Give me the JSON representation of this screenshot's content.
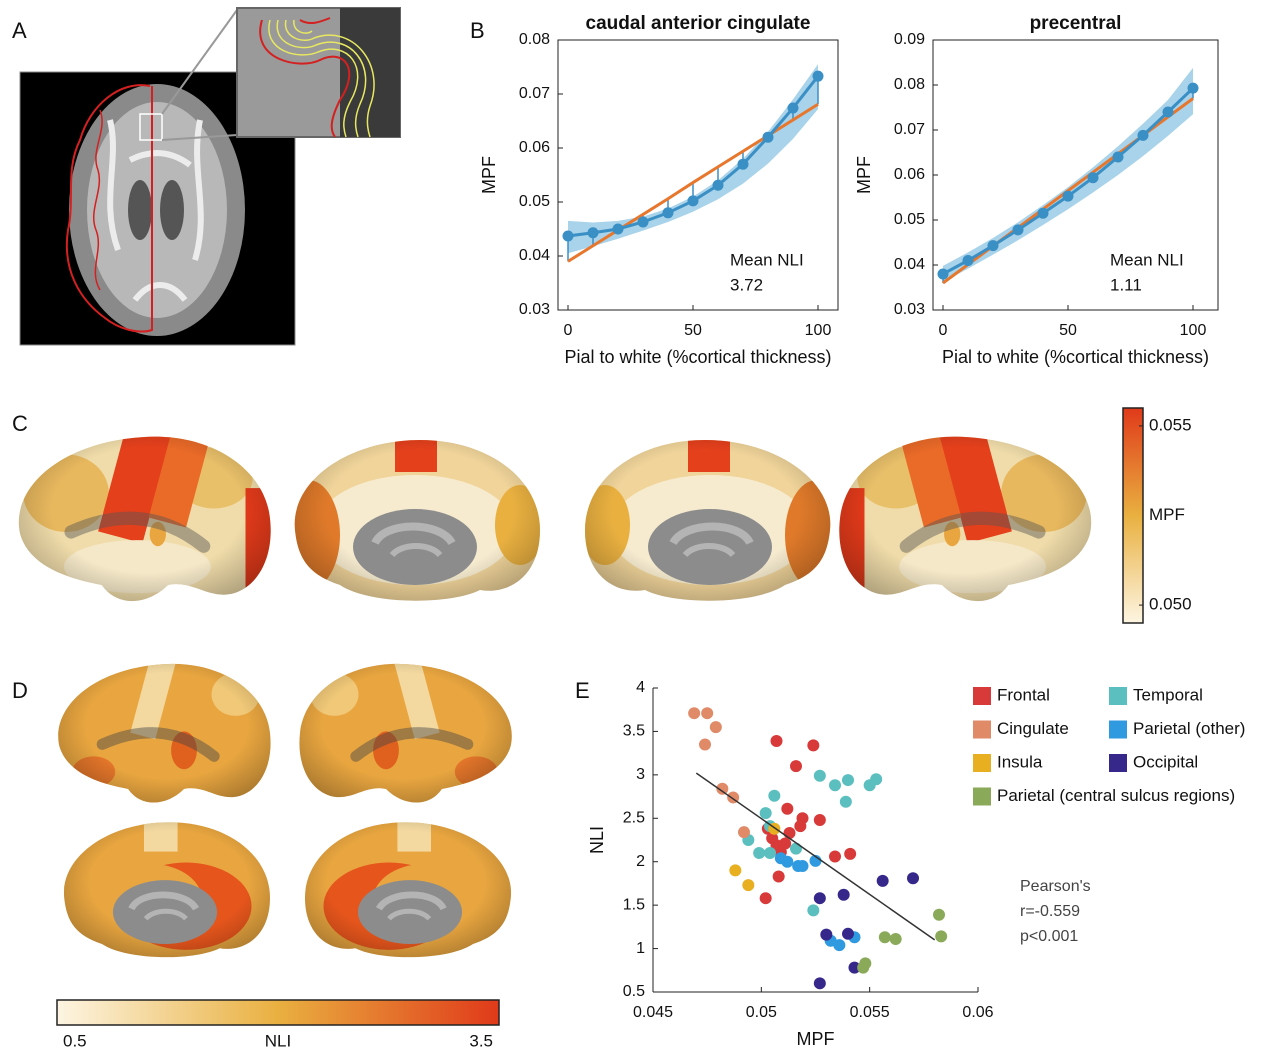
{
  "panel_labels": [
    "A",
    "B",
    "C",
    "D",
    "E"
  ],
  "chart_data": [
    {
      "type": "line",
      "title": "caudal anterior cingulate",
      "xlabel": "Pial to white (%cortical thickness)",
      "ylabel": "MPF",
      "x": [
        0,
        10,
        20,
        30,
        40,
        50,
        60,
        70,
        80,
        90,
        100
      ],
      "xlim": [
        -4,
        108
      ],
      "xticks": [
        0,
        50,
        100
      ],
      "ylim": [
        0.03,
        0.08
      ],
      "yticks": [
        0.03,
        0.04,
        0.05,
        0.06,
        0.07,
        0.08
      ],
      "band": {
        "color": "#a8d3ea",
        "lower": [
          0.0405,
          0.0418,
          0.0432,
          0.0447,
          0.0463,
          0.0482,
          0.0505,
          0.0534,
          0.0571,
          0.0617,
          0.0672
        ],
        "upper": [
          0.0465,
          0.0462,
          0.0465,
          0.0473,
          0.0488,
          0.051,
          0.054,
          0.058,
          0.063,
          0.069,
          0.0755
        ]
      },
      "series": [
        {
          "color": "#3a8fc4",
          "values": [
            0.0437,
            0.0443,
            0.045,
            0.0463,
            0.048,
            0.0502,
            0.0531,
            0.057,
            0.062,
            0.0674,
            0.0733
          ]
        },
        {
          "color": "#e8772e",
          "values": [
            0.039,
            0.0419,
            0.0448,
            0.0477,
            0.0506,
            0.0536,
            0.0565,
            0.0594,
            0.0623,
            0.0652,
            0.0681
          ]
        }
      ],
      "annotation": [
        "Mean NLI",
        "3.72"
      ]
    },
    {
      "type": "line",
      "title": "precentral",
      "xlabel": "Pial to white (%cortical thickness)",
      "ylabel": "MPF",
      "x": [
        0,
        10,
        20,
        30,
        40,
        50,
        60,
        70,
        80,
        90,
        100
      ],
      "xlim": [
        -4,
        110
      ],
      "xticks": [
        0,
        50,
        100
      ],
      "ylim": [
        0.03,
        0.09
      ],
      "yticks": [
        0.03,
        0.04,
        0.05,
        0.06,
        0.07,
        0.08,
        0.09
      ],
      "band": {
        "color": "#a8d3ea",
        "lower": [
          0.0362,
          0.0392,
          0.0423,
          0.0455,
          0.0489,
          0.0524,
          0.0561,
          0.06,
          0.0642,
          0.0687,
          0.0735
        ],
        "upper": [
          0.0398,
          0.0428,
          0.046,
          0.0495,
          0.0533,
          0.0573,
          0.0617,
          0.0664,
          0.0714,
          0.0767,
          0.0838
        ]
      },
      "series": [
        {
          "color": "#3a8fc4",
          "values": [
            0.038,
            0.041,
            0.0443,
            0.0478,
            0.0515,
            0.0553,
            0.0594,
            0.064,
            0.0688,
            0.074,
            0.0793
          ]
        },
        {
          "color": "#e8772e",
          "values": [
            0.036,
            0.0401,
            0.0442,
            0.0483,
            0.0524,
            0.0565,
            0.0606,
            0.0647,
            0.0688,
            0.0729,
            0.077
          ]
        }
      ],
      "annotation": [
        "Mean NLI",
        "1.11"
      ]
    },
    {
      "type": "colorbar",
      "label": "MPF",
      "orientation": "vertical",
      "clim": [
        0.0495,
        0.0555
      ],
      "ticks": [
        {
          "value": 0.05,
          "label": "0.050"
        },
        0.055
      ],
      "colormap": [
        "#fdf5e2",
        "#e9b040",
        "#e03a1a"
      ]
    },
    {
      "type": "colorbar",
      "label": "NLI",
      "orientation": "horizontal",
      "clim": [
        0.5,
        3.5
      ],
      "ticks": [
        0.5,
        3.5
      ],
      "colormap": [
        "#fdf5e2",
        "#e9b040",
        "#e03a1a"
      ]
    },
    {
      "type": "scatter",
      "xlabel": "MPF",
      "ylabel": "NLI",
      "xlim": [
        0.045,
        0.06
      ],
      "xticks": [
        0.045,
        0.05,
        0.055,
        0.06
      ],
      "ylim": [
        0.5,
        4
      ],
      "yticks": [
        0.5,
        1,
        1.5,
        2,
        2.5,
        3,
        3.5,
        4
      ],
      "series": [
        {
          "name": "Frontal",
          "color": "#d83a3a",
          "x": [
            0.0507,
            0.0524,
            0.0516,
            0.0512,
            0.0519,
            0.0518,
            0.0527,
            0.0503,
            0.0513,
            0.0505,
            0.0507,
            0.0509,
            0.0511,
            0.0508,
            0.0502,
            0.0534,
            0.0541
          ],
          "y": [
            3.39,
            3.34,
            3.1,
            2.61,
            2.5,
            2.41,
            2.48,
            2.38,
            2.33,
            2.27,
            2.19,
            2.11,
            2.21,
            1.83,
            1.58,
            2.06,
            2.09
          ]
        },
        {
          "name": "Temporal",
          "color": "#5bbfbf",
          "x": [
            0.0527,
            0.0534,
            0.054,
            0.0553,
            0.055,
            0.0539,
            0.0506,
            0.0502,
            0.0494,
            0.0504,
            0.0499,
            0.0504,
            0.0516,
            0.0524
          ],
          "y": [
            2.99,
            2.88,
            2.94,
            2.95,
            2.88,
            2.69,
            2.76,
            2.56,
            2.25,
            2.41,
            2.1,
            2.1,
            2.15,
            1.44
          ]
        },
        {
          "name": "Cingulate",
          "color": "#e08a68",
          "x": [
            0.0469,
            0.0475,
            0.0479,
            0.0474,
            0.0482,
            0.0487,
            0.0492
          ],
          "y": [
            3.71,
            3.71,
            3.55,
            3.35,
            2.84,
            2.74,
            2.34
          ]
        },
        {
          "name": "Parietal (other)",
          "color": "#2f9ae0",
          "x": [
            0.0509,
            0.0512,
            0.0517,
            0.0525,
            0.0519,
            0.0532,
            0.0536,
            0.0543
          ],
          "y": [
            2.04,
            2,
            1.95,
            2.01,
            1.95,
            1.09,
            1.04,
            1.13
          ]
        },
        {
          "name": "Insula",
          "color": "#e8b020",
          "x": [
            0.0488,
            0.0494,
            0.0506
          ],
          "y": [
            1.9,
            1.73,
            2.38
          ]
        },
        {
          "name": "Occipital",
          "color": "#35288a",
          "x": [
            0.0556,
            0.057,
            0.0538,
            0.0527,
            0.053,
            0.054,
            0.0543,
            0.0527
          ],
          "y": [
            1.78,
            1.81,
            1.62,
            1.58,
            1.16,
            1.17,
            0.78,
            0.6
          ]
        },
        {
          "name": "Parietal (central sulcus regions)",
          "color": "#8aaa5a",
          "x": [
            0.0582,
            0.0583,
            0.0557,
            0.0562,
            0.0548,
            0.0547
          ],
          "y": [
            1.39,
            1.14,
            1.13,
            1.11,
            0.83,
            0.78
          ]
        }
      ],
      "fit": {
        "color": "#333333",
        "x": [
          0.047,
          0.058
        ],
        "y": [
          3.02,
          1.1
        ]
      },
      "annotation": [
        "Pearson's",
        "r=-0.559",
        "p<0.001"
      ]
    }
  ]
}
